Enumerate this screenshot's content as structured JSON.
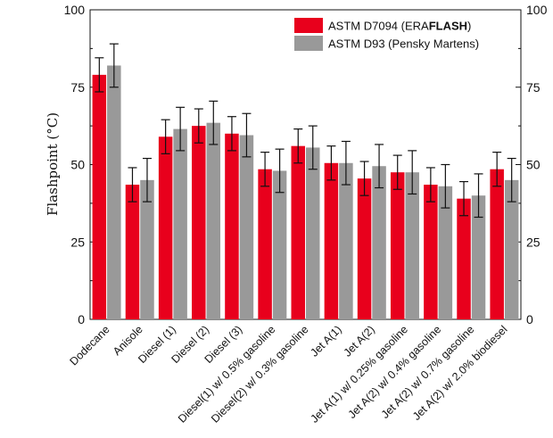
{
  "chart_data": {
    "type": "bar",
    "title": "",
    "xlabel": "",
    "ylabel": "Flashpoint (°C)",
    "ylim": [
      0,
      100
    ],
    "yticks": [
      0,
      25,
      50,
      75,
      100
    ],
    "right_axis_ticks": true,
    "grid": false,
    "legend_position": "top-right",
    "error_bars": true,
    "categories": [
      "Dodecane",
      "Anisole",
      "Diesel (1)",
      "Diesel (2)",
      "Diesel (3)",
      "Diesel(1) w/ 0.5% gasoline",
      "Diesel(2) w/ 0.3% gasoline",
      "Jet A(1)",
      "Jet A(2)",
      "Jet A(1) w/ 0.25% gasoline",
      "Jet A(2) w/ 0.4% gasoline",
      "Jet A(2) w/ 0.7% gasoline",
      "Jet A(2) w/ 2.0% biodiesel"
    ],
    "series": [
      {
        "name": "ASTM D7094 (ERAFLASH)",
        "legend_prefix": "ASTM D7094 (ERA",
        "legend_bold": "FLASH",
        "legend_suffix": ")",
        "color": "#e8001c",
        "values": [
          79,
          43.5,
          59,
          62.5,
          60,
          48.5,
          56,
          50.5,
          45.5,
          47.5,
          43.5,
          39,
          48.5
        ],
        "errors": [
          5.5,
          5.5,
          5.5,
          5.5,
          5.5,
          5.5,
          5.5,
          5.5,
          5.5,
          5.5,
          5.5,
          5.5,
          5.5
        ]
      },
      {
        "name": "ASTM D93 (Pensky Martens)",
        "legend_prefix": "ASTM D93 (Pensky Martens)",
        "legend_bold": "",
        "legend_suffix": "",
        "color": "#999999",
        "values": [
          82,
          45,
          61.5,
          63.5,
          59.5,
          48,
          55.5,
          50.5,
          49.5,
          47.5,
          43,
          40,
          45
        ],
        "errors": [
          7,
          7,
          7,
          7,
          7,
          7,
          7,
          7,
          7,
          7,
          7,
          7,
          7
        ]
      }
    ]
  }
}
